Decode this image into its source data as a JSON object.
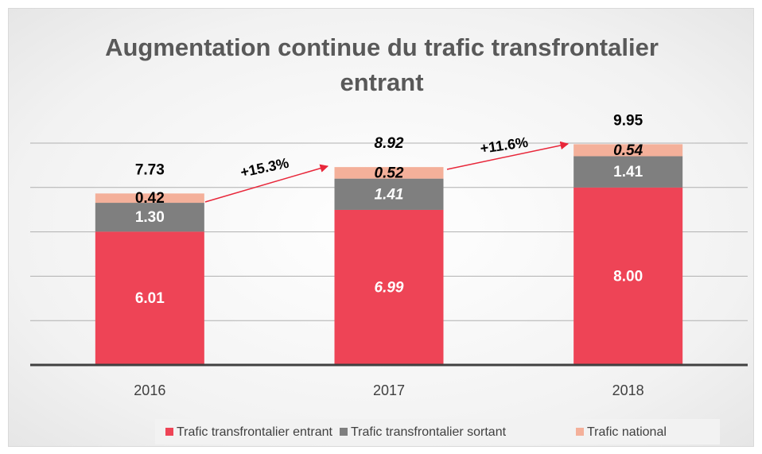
{
  "chart_data": {
    "type": "stacked_bar",
    "title": "Augmentation continue du trafic transfrontalier entrant",
    "categories": [
      "2016",
      "2017",
      "2018"
    ],
    "series": [
      {
        "name": "Trafic transfrontalier entrant",
        "color": "#ee4456",
        "values": [
          6.01,
          6.99,
          8.0
        ],
        "value_labels": [
          "6.01",
          "6.99",
          "8.00"
        ]
      },
      {
        "name": "Trafic transfrontalier sortant",
        "color": "#7f7f7f",
        "values": [
          1.3,
          1.41,
          1.41
        ],
        "value_labels": [
          "1.30",
          "1.41",
          "1.41"
        ]
      },
      {
        "name": "Trafic national",
        "color": "#f4b09a",
        "values": [
          0.42,
          0.52,
          0.54
        ],
        "value_labels": [
          "0.42",
          "0.52",
          "0.54"
        ]
      }
    ],
    "totals": [
      7.73,
      8.92,
      9.95
    ],
    "annotations": [
      "+15.3%",
      "+11.6%"
    ],
    "ylim": [
      0,
      10
    ],
    "yticks": [
      0,
      2,
      4,
      6,
      8,
      10
    ],
    "grid": true,
    "legend": "bottom"
  }
}
